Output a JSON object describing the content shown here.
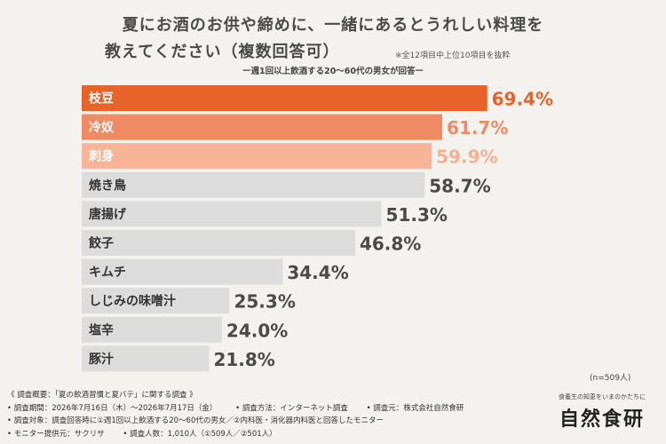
{
  "header": {
    "title_line1": "夏にお酒のお供や締めに、一緒にあるとうれしい料理を",
    "title_line2": "教えてください（複数回答可）",
    "note": "※全12項目中上位10項目を抜粋",
    "subtitle": "ー週1回以上飲酒する20〜60代の男女が回答ー"
  },
  "chart_data": {
    "type": "bar",
    "orientation": "horizontal",
    "categories": [
      "枝豆",
      "冷奴",
      "刺身",
      "焼き鳥",
      "唐揚げ",
      "餃子",
      "キムチ",
      "しじみの味噌汁",
      "塩辛",
      "豚汁"
    ],
    "values": [
      69.4,
      61.7,
      59.9,
      58.7,
      51.3,
      46.8,
      34.4,
      25.3,
      24.0,
      21.8
    ],
    "value_labels": [
      "69.4%",
      "61.7%",
      "59.9%",
      "58.7%",
      "51.3%",
      "46.8%",
      "34.4%",
      "25.3%",
      "24.0%",
      "21.8%"
    ],
    "xlim": [
      0,
      100
    ],
    "colors": {
      "bar_1": "#e8632a",
      "bar_2": "#f08a62",
      "bar_3": "#f7b497",
      "bar_other": "#dcdcdc",
      "label_highlight_1": "#e8632a",
      "label_highlight_2": "#f08a62",
      "label_highlight_3": "#f5b092",
      "label_other": "#4a4a4a",
      "text_on_highlight": "#ffffff",
      "text_on_gray": "#333333"
    },
    "n_label": "(n=509人)"
  },
  "footer": {
    "summary": "《 調査概要：「夏の飲酒習慣と夏バテ」に関する調査 》",
    "period": "• 調査期間：2026年7月16日（木）〜2026年7月17日（金）",
    "method": "• 調査方法：インターネット調査",
    "source": "• 調査元：株式会社自然食研",
    "target": "• 調査対象：調査回答時に①週1回以上飲酒する20〜60代の男女／②内科医・消化器内科医と回答したモニター",
    "provider": "• モニター提供元：サクリサ",
    "respondents": "• 調査人数：1,010人（①509人／②501人）"
  },
  "logo": {
    "tagline": "食養生の知恵をいまのかたちに",
    "name": "自然食研"
  }
}
